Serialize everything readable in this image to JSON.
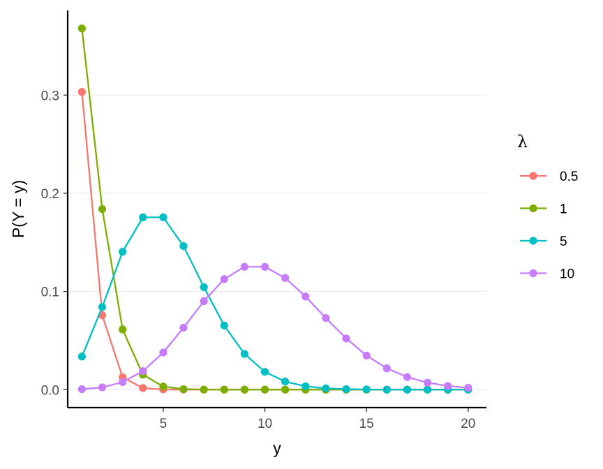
{
  "chart_data": {
    "type": "line",
    "xlabel": "y",
    "ylabel": "P(Y = y)",
    "xlim": [
      0.3,
      20.9
    ],
    "ylim": [
      -0.0183,
      0.3862
    ],
    "xticks": [
      5,
      10,
      15,
      20
    ],
    "xtick_labels": [
      "5",
      "10",
      "15",
      "20"
    ],
    "yticks": [
      0,
      0.1,
      0.2,
      0.3
    ],
    "ytick_labels": [
      "0.0",
      "0.1",
      "0.2",
      "0.3"
    ],
    "grid": "horizontal-major",
    "legend": {
      "title": "λ",
      "placement": "right"
    },
    "x": [
      1,
      2,
      3,
      4,
      5,
      6,
      7,
      8,
      9,
      10,
      11,
      12,
      13,
      14,
      15,
      16,
      17,
      18,
      19,
      20
    ],
    "series": [
      {
        "name": "0.5",
        "color": "#F8766D",
        "values": [
          0.3033,
          0.0758,
          0.0126,
          0.0016,
          0.0002,
          0.0,
          0.0,
          0.0,
          0.0,
          0.0,
          0.0,
          0.0,
          0.0,
          0.0,
          0.0,
          0.0,
          0.0,
          0.0,
          0.0,
          0.0
        ]
      },
      {
        "name": "1",
        "color": "#7CAE00",
        "values": [
          0.3679,
          0.1839,
          0.0613,
          0.0153,
          0.0031,
          0.0005,
          0.0001,
          0.0,
          0.0,
          0.0,
          0.0,
          0.0,
          0.0,
          0.0,
          0.0,
          0.0,
          0.0,
          0.0,
          0.0,
          0.0
        ]
      },
      {
        "name": "5",
        "color": "#00BFC4",
        "values": [
          0.0337,
          0.0842,
          0.1404,
          0.1755,
          0.1755,
          0.1462,
          0.1044,
          0.0653,
          0.0363,
          0.0181,
          0.0082,
          0.0034,
          0.0013,
          0.0005,
          0.0002,
          0.0,
          0.0,
          0.0,
          0.0,
          0.0
        ]
      },
      {
        "name": "10",
        "color": "#C77CFF",
        "values": [
          0.0005,
          0.0023,
          0.0076,
          0.0189,
          0.0378,
          0.0631,
          0.0901,
          0.1126,
          0.1251,
          0.1251,
          0.1137,
          0.0948,
          0.0729,
          0.0521,
          0.0347,
          0.0217,
          0.0128,
          0.0071,
          0.0037,
          0.0019
        ]
      }
    ]
  }
}
